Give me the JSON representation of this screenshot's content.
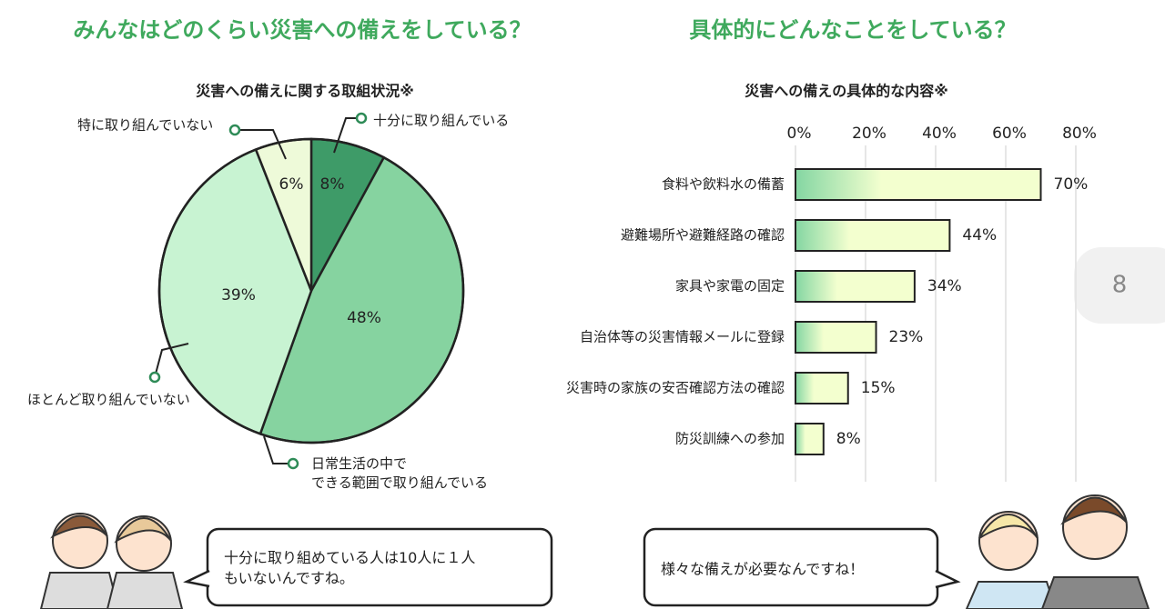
{
  "headings": [
    "みんなはどのくらい災害への備えをしている？",
    "具体的にどんなことをしている？"
  ],
  "chart_data": [
    {
      "type": "pie",
      "title": "災害への備えに関する取組状況※",
      "categories": [
        "十分に取り組んでいる",
        "日常生活の中で\nできる範囲で取り組んでいる",
        "ほとんど取り組んでいない",
        "特に取り組んでいない"
      ],
      "values": [
        8,
        48,
        39,
        6
      ],
      "value_labels": [
        "8%",
        "48%",
        "39%",
        "6%"
      ],
      "colors": [
        "#3e9b68",
        "#86d3a0",
        "#c8f3d2",
        "#eefad9"
      ]
    },
    {
      "type": "barh",
      "title": "災害への備えの具体的な内容※",
      "categories": [
        "食料や飲料水の備蓄",
        "避難場所や避難経路の確認",
        "家具や家電の固定",
        "自治体等の災害情報メールに登録",
        "災害時の家族の安否確認方法の確認",
        "防災訓練への参加"
      ],
      "values": [
        70,
        44,
        34,
        23,
        15,
        8
      ],
      "value_labels": [
        "70%",
        "44%",
        "34%",
        "23%",
        "15%",
        "8%"
      ],
      "xlim": [
        0,
        80
      ],
      "xticks": [
        {
          "value": 0,
          "label": "0%"
        },
        {
          "value": 20,
          "label": "20%"
        },
        {
          "value": 40,
          "label": "40%"
        },
        {
          "value": 60,
          "label": "60%"
        },
        {
          "value": 80,
          "label": "80%"
        }
      ],
      "grid": true,
      "color": "#f3ffcf"
    }
  ],
  "bubbles": [
    "十分に取り組めている人は10人に１人\nもいないんですね。",
    "様々な備えが必要なんですね！"
  ],
  "page_number": "8"
}
